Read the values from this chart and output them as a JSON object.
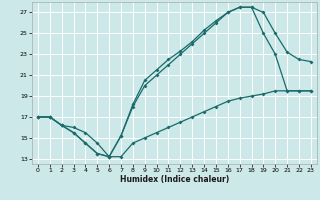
{
  "title": "",
  "xlabel": "Humidex (Indice chaleur)",
  "bg_color": "#cce8e8",
  "grid_color": "#ffffff",
  "line_color": "#1a6b6b",
  "xlim": [
    -0.5,
    23.5
  ],
  "ylim": [
    12.5,
    28.0
  ],
  "xticks": [
    0,
    1,
    2,
    3,
    4,
    5,
    6,
    7,
    8,
    9,
    10,
    11,
    12,
    13,
    14,
    15,
    16,
    17,
    18,
    19,
    20,
    21,
    22,
    23
  ],
  "yticks": [
    13,
    15,
    17,
    19,
    21,
    23,
    25,
    27
  ],
  "line_upper_x": [
    0,
    1,
    2,
    3,
    4,
    5,
    6,
    7,
    8,
    9,
    10,
    11,
    12,
    13,
    14,
    15,
    16,
    17,
    18,
    19,
    20,
    21,
    22,
    23
  ],
  "line_upper_y": [
    17.0,
    17.0,
    16.2,
    15.5,
    14.5,
    13.5,
    13.2,
    15.2,
    18.2,
    20.5,
    21.5,
    22.5,
    23.3,
    24.2,
    25.3,
    26.2,
    27.0,
    27.5,
    27.5,
    27.0,
    25.0,
    23.2,
    22.5,
    22.3
  ],
  "line_lower_x": [
    0,
    1,
    2,
    3,
    4,
    5,
    6,
    7,
    8,
    9,
    10,
    11,
    12,
    13,
    14,
    15,
    16,
    17,
    18,
    19,
    20,
    21,
    22,
    23
  ],
  "line_lower_y": [
    17.0,
    17.0,
    16.2,
    15.5,
    14.5,
    13.5,
    13.2,
    15.2,
    18.0,
    20.0,
    21.0,
    22.0,
    23.0,
    24.0,
    25.0,
    26.0,
    27.0,
    27.5,
    27.5,
    25.0,
    23.0,
    19.5,
    19.5,
    19.5
  ],
  "line_base_x": [
    0,
    1,
    2,
    3,
    4,
    5,
    6,
    7,
    8,
    9,
    10,
    11,
    12,
    13,
    14,
    15,
    16,
    17,
    18,
    19,
    20,
    21,
    22,
    23
  ],
  "line_base_y": [
    17.0,
    17.0,
    16.2,
    16.0,
    15.5,
    14.5,
    13.2,
    13.2,
    14.5,
    15.0,
    15.5,
    16.0,
    16.5,
    17.0,
    17.5,
    18.0,
    18.5,
    18.8,
    19.0,
    19.2,
    19.5,
    19.5,
    19.5,
    19.5
  ]
}
